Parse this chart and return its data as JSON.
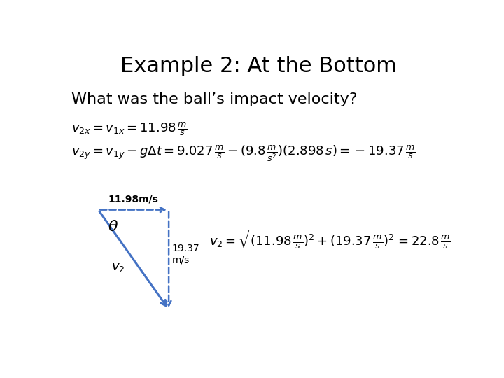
{
  "title": "Example 2: At the Bottom",
  "question": "What was the ball’s impact velocity?",
  "eq1": "$v_{2x} = v_{1x} = 11.98\\,\\frac{m}{s}$",
  "eq2": "$v_{2y} = v_{1y} - g\\Delta t = 9.027\\,\\frac{m}{s} - (9.8\\,\\frac{m}{s^2})(2.898\\,s) = -19.37\\,\\frac{m}{s}$",
  "eq3": "$v_2 = \\sqrt{(11.98\\,\\frac{m}{s})^2 + (19.37\\,\\frac{m}{s})^2} = 22.8\\,\\frac{m}{s}$",
  "label_horiz": "11.98m/s",
  "label_vert": "19.37\nm/s",
  "label_hyp": "$v_2$",
  "label_theta": "$\\theta$",
  "bg_color": "#ffffff",
  "arrow_color": "#4472C4",
  "dashed_color": "#4472C4",
  "title_fontsize": 22,
  "question_fontsize": 16,
  "eq_fontsize": 13,
  "eq3_fontsize": 13,
  "label_fontsize": 10,
  "theta_fontsize": 16,
  "v2_fontsize": 13
}
